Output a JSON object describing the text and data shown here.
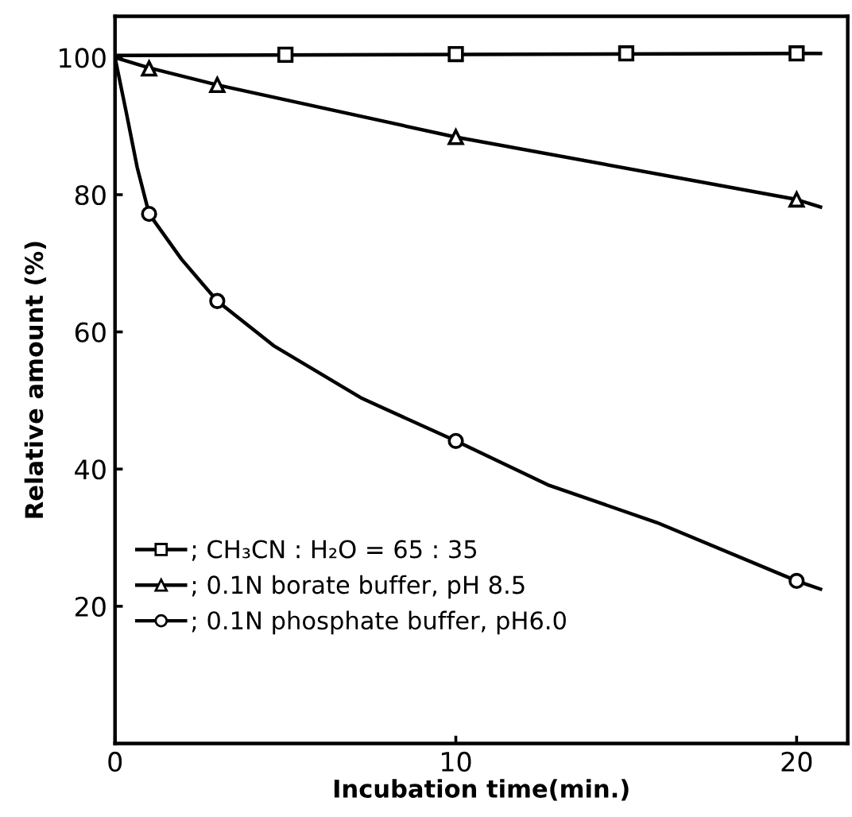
{
  "chart_data": {
    "type": "scatter",
    "xlabel": "Incubation time(min.)",
    "ylabel": "Relative amount (%)",
    "xlim": [
      0,
      21.5
    ],
    "ylim": [
      0,
      106
    ],
    "xticks": [
      0,
      10,
      20
    ],
    "yticks": [
      20,
      40,
      60,
      80,
      100
    ],
    "grid": false,
    "legend": "lower left",
    "series": [
      {
        "name": "; CH₃CN : H₂O = 65 : 35",
        "color": "#000000",
        "marker": "square",
        "x": [
          5,
          10,
          15,
          20
        ],
        "values": [
          100.4,
          100.5,
          100.6,
          100.6
        ]
      },
      {
        "name": "; 0.1N borate buffer, pH 8.5",
        "color": "#000000",
        "marker": "triangle",
        "x": [
          1,
          3,
          10,
          20
        ],
        "values": [
          98.4,
          96,
          88.4,
          79.3
        ]
      },
      {
        "name": "; 0.1N phosphate buffer, pH6.0",
        "color": "#000000",
        "marker": "circle",
        "x": [
          1,
          3,
          10,
          20
        ],
        "values": [
          77.2,
          64.5,
          44.1,
          23.7
        ]
      },
      {
        "type": "line",
        "color": "#000000",
        "marker": "none",
        "x": [
          0,
          20.7
        ],
        "values": [
          100.3,
          100.6
        ]
      },
      {
        "type": "line",
        "color": "#000000",
        "marker": "none",
        "x": [
          0,
          1,
          3,
          10,
          20,
          20.7
        ],
        "values": [
          100,
          98.5,
          96,
          88.4,
          79.3,
          78.2
        ]
      },
      {
        "type": "line",
        "color": "#000000",
        "marker": "none",
        "x": [
          0,
          0.33,
          0.65,
          1,
          1.95,
          3,
          4.65,
          7.25,
          10,
          12.7,
          15.9,
          20,
          20.7
        ],
        "values": [
          100,
          92,
          84,
          77.2,
          70.6,
          64.5,
          58,
          50.3,
          44.1,
          37.7,
          32.2,
          23.7,
          22.5
        ]
      }
    ]
  }
}
